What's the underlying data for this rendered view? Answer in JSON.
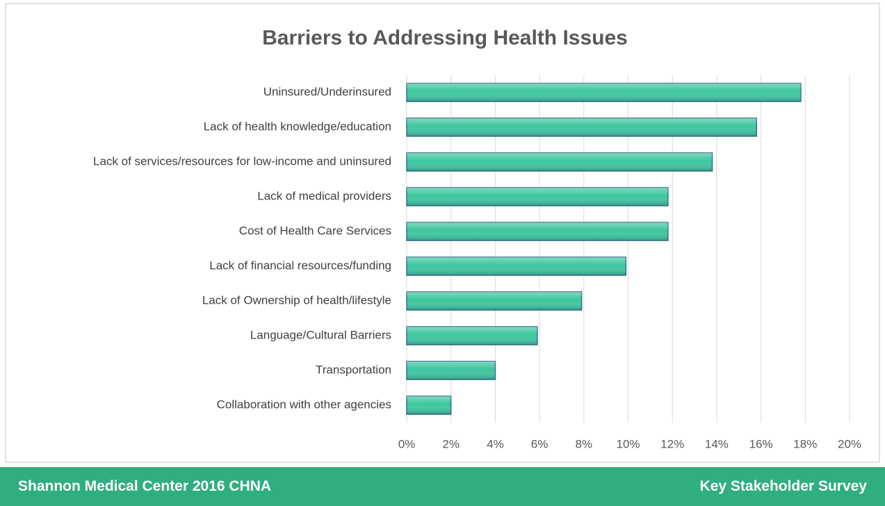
{
  "chart_data": {
    "type": "bar",
    "orientation": "horizontal",
    "title": "Barriers to Addressing Health Issues",
    "categories": [
      "Uninsured/Underinsured",
      "Lack of health knowledge/education",
      "Lack of services/resources for low-income and uninsured",
      "Lack of medical providers",
      "Cost of Health Care Services",
      "Lack of financial resources/funding",
      "Lack of Ownership of health/lifestyle",
      "Language/Cultural Barriers",
      "Transportation",
      "Collaboration with other agencies"
    ],
    "values": [
      17.8,
      15.8,
      13.8,
      11.8,
      11.8,
      9.9,
      7.9,
      5.9,
      4.0,
      2.0
    ],
    "color": "#3cc69e",
    "xlim": [
      0,
      20
    ],
    "xticks": [
      {
        "value": 0,
        "label": "0%"
      },
      {
        "value": 2,
        "label": "2%"
      },
      {
        "value": 4,
        "label": "4%"
      },
      {
        "value": 6,
        "label": "6%"
      },
      {
        "value": 8,
        "label": "8%"
      },
      {
        "value": 10,
        "label": "10%"
      },
      {
        "value": 12,
        "label": "12%"
      },
      {
        "value": 14,
        "label": "14%"
      },
      {
        "value": 16,
        "label": "16%"
      },
      {
        "value": 18,
        "label": "18%"
      },
      {
        "value": 20,
        "label": "20%"
      }
    ],
    "grid": true
  },
  "footer": {
    "left": "Shannon Medical Center 2016 CHNA",
    "right": "Key Stakeholder Survey"
  }
}
